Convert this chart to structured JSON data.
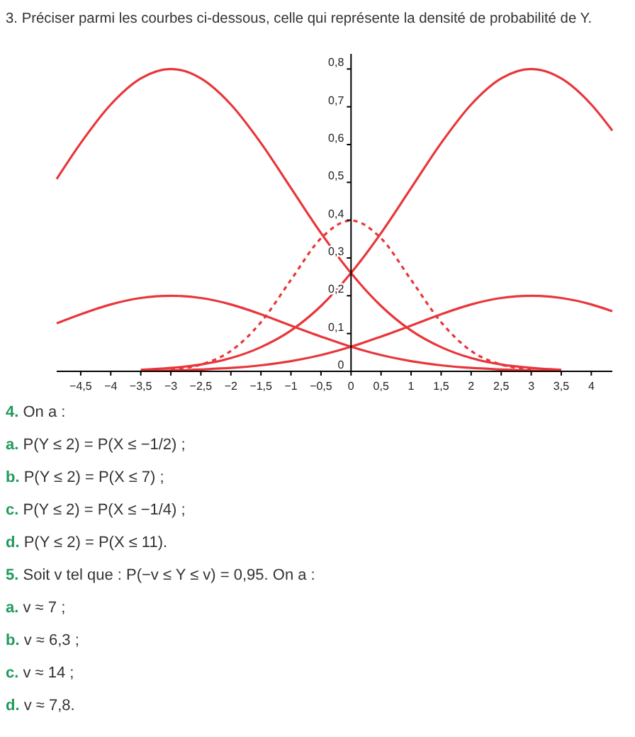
{
  "chart_data": {
    "type": "line",
    "title": "3. Préciser parmi les courbes ci-dessous, celle qui représente la densité de probabilité de Y.",
    "xlim": [
      -4.9,
      4.35
    ],
    "ylim": [
      0,
      0.84
    ],
    "xticks": [
      {
        "value": -4.5,
        "label": "−4,5"
      },
      {
        "value": -4,
        "label": "−4"
      },
      {
        "value": -3.5,
        "label": "−3,5"
      },
      {
        "value": -3,
        "label": "−3"
      },
      {
        "value": -2.5,
        "label": "−2,5"
      },
      {
        "value": -2,
        "label": "−2"
      },
      {
        "value": -1.5,
        "label": "−1,5"
      },
      {
        "value": -1,
        "label": "−1"
      },
      {
        "value": -0.5,
        "label": "−0,5"
      },
      0,
      {
        "value": 0.5,
        "label": "0,5"
      },
      1,
      {
        "value": 1.5,
        "label": "1,5"
      },
      2,
      {
        "value": 2.5,
        "label": "2,5"
      },
      3,
      {
        "value": 3.5,
        "label": "3,5"
      },
      4
    ],
    "yticks": [
      0,
      {
        "value": 0.1,
        "label": "0,1"
      },
      {
        "value": 0.2,
        "label": "0,2"
      },
      {
        "value": 0.3,
        "label": "0,3"
      },
      {
        "value": 0.4,
        "label": "0,4"
      },
      {
        "value": 0.5,
        "label": "0,5"
      },
      {
        "value": 0.6,
        "label": "0,6"
      },
      {
        "value": 0.7,
        "label": "0,7"
      },
      {
        "value": 0.8,
        "label": "0,8"
      }
    ],
    "grid": false,
    "marker": "none",
    "series": [
      {
        "color": "#e8363a",
        "x": [
          -4.9,
          -4.5,
          -4,
          -3.5,
          -3,
          -2.5,
          -2,
          -1.5,
          -1,
          -0.5,
          0,
          0.5,
          1,
          1.5,
          2,
          2.5,
          3,
          3.5
        ],
        "values": [
          0.509,
          0.604,
          0.706,
          0.775,
          0.8,
          0.775,
          0.706,
          0.604,
          0.485,
          0.366,
          0.26,
          0.173,
          0.108,
          0.064,
          0.035,
          0.018,
          0.009,
          0.004
        ]
      },
      {
        "color": "#e8363a",
        "x": [
          -4.9,
          -4.5,
          -4,
          -3.5,
          -3,
          -2.5,
          -2,
          -1.5,
          -1,
          -0.5,
          0,
          0.5,
          1,
          1.5,
          2,
          2.5,
          3,
          3.5
        ],
        "values": [
          0.127,
          0.151,
          0.177,
          0.194,
          0.2,
          0.194,
          0.177,
          0.151,
          0.121,
          0.092,
          0.065,
          0.043,
          0.027,
          0.016,
          0.009,
          0.005,
          0.002,
          0.001
        ]
      },
      {
        "color": "#e8363a",
        "x": [
          -3.5,
          -3,
          -2.5,
          -2,
          -1.5,
          -1,
          -0.5,
          0,
          0.5,
          1,
          1.5,
          2,
          2.5,
          3,
          3.5,
          4,
          4.35
        ],
        "values": [
          0.004,
          0.009,
          0.018,
          0.035,
          0.064,
          0.108,
          0.173,
          0.26,
          0.366,
          0.485,
          0.604,
          0.706,
          0.775,
          0.8,
          0.775,
          0.706,
          0.637
        ]
      },
      {
        "color": "#e8363a",
        "x": [
          -3.5,
          -3,
          -2.5,
          -2,
          -1.5,
          -1,
          -0.5,
          0,
          0.5,
          1,
          1.5,
          2,
          2.5,
          3,
          3.5,
          4,
          4.35
        ],
        "values": [
          0.001,
          0.002,
          0.005,
          0.009,
          0.016,
          0.027,
          0.043,
          0.065,
          0.092,
          0.121,
          0.151,
          0.177,
          0.194,
          0.2,
          0.194,
          0.177,
          0.159
        ]
      },
      {
        "color": "#e8363a",
        "line_style": "dashed",
        "x": [
          -3,
          -2.5,
          -2,
          -1.5,
          -1,
          -0.5,
          0,
          0.5,
          1,
          1.5,
          2,
          2.5,
          3
        ],
        "values": [
          0.004,
          0.018,
          0.054,
          0.13,
          0.242,
          0.352,
          0.399,
          0.352,
          0.242,
          0.13,
          0.054,
          0.018,
          0.004
        ]
      }
    ],
    "annotations": [
      "4. On a :",
      "a. P(Y ≤ 2) = P(X ≤ −1/2) ;",
      "b. P(Y ≤ 2) = P(X ≤ 7) ;",
      "c. P(Y ≤ 2) = P(X ≤ −1/4) ;",
      "d. P(Y ≤ 2) = P(X ≤ 11).",
      "5. Soit v tel que : P(−v ≤ Y ≤ v) = 0,95. On a :",
      "a. v ≈ 7 ;",
      "b. v ≈ 6,3 ;",
      "c. v ≈ 14 ;",
      "d. v ≈ 7,8."
    ]
  }
}
